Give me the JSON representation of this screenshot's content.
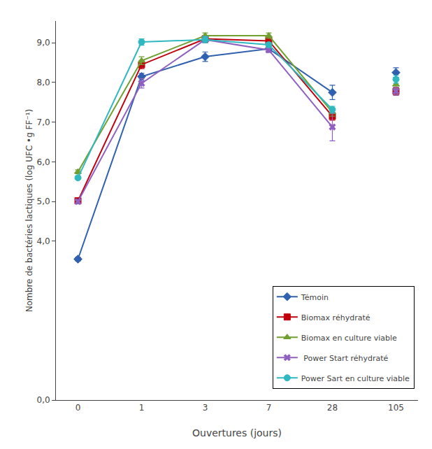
{
  "chart_data": {
    "type": "line",
    "xlabel": "Ouvertures (jours)",
    "ylabel": "Nombre de bactéries lactiques (log UFC •g FF⁻¹)",
    "categories": [
      "0",
      "1",
      "3",
      "7",
      "28",
      "105"
    ],
    "series": [
      {
        "name": "Témoin",
        "color": "#3060b0",
        "marker": "diamond",
        "values": [
          3.55,
          8.15,
          8.65,
          8.85,
          7.75,
          8.25
        ],
        "yerr": [
          0.05,
          0.08,
          0.12,
          0.06,
          0.18,
          0.12
        ]
      },
      {
        "name": "Biomax réhydraté",
        "color": "#c0000c",
        "marker": "square",
        "values": [
          5.02,
          8.45,
          9.1,
          9.05,
          7.15,
          7.78
        ],
        "yerr": [
          0.04,
          0.1,
          0.08,
          0.08,
          0.1,
          0.1
        ]
      },
      {
        "name": "Biomax en culture viable",
        "color": "#70a030",
        "marker": "triangle-up",
        "values": [
          5.75,
          8.55,
          9.18,
          9.18,
          7.25,
          7.95
        ],
        "yerr": [
          0.05,
          0.1,
          0.07,
          0.07,
          0.1,
          0.1
        ]
      },
      {
        "name": " Power Start réhydraté",
        "color": "#9060c0",
        "marker": "x",
        "values": [
          5.0,
          7.98,
          9.08,
          8.82,
          6.88,
          7.78
        ],
        "yerr": [
          0.05,
          0.12,
          0.08,
          0.06,
          0.35,
          0.1
        ]
      },
      {
        "name": "Power Sart en culture viable",
        "color": "#30b8c0",
        "marker": "circle",
        "values": [
          5.6,
          9.02,
          9.08,
          8.95,
          7.32,
          8.08
        ],
        "yerr": [
          0.04,
          0.08,
          0.08,
          0.06,
          0.08,
          0.1
        ]
      }
    ],
    "ylim": [
      0.0,
      9.55
    ],
    "yticks": [
      {
        "value": 0.0,
        "label": "0,0"
      },
      {
        "value": 4.0,
        "label": "4,0"
      },
      {
        "value": 5.0,
        "label": "5,0"
      },
      {
        "value": 6.0,
        "label": "6,0"
      },
      {
        "value": 7.0,
        "label": "7,0"
      },
      {
        "value": 8.0,
        "label": "8,0"
      },
      {
        "value": 9.0,
        "label": "9,0"
      }
    ],
    "legend": "lower right",
    "grid": false
  }
}
